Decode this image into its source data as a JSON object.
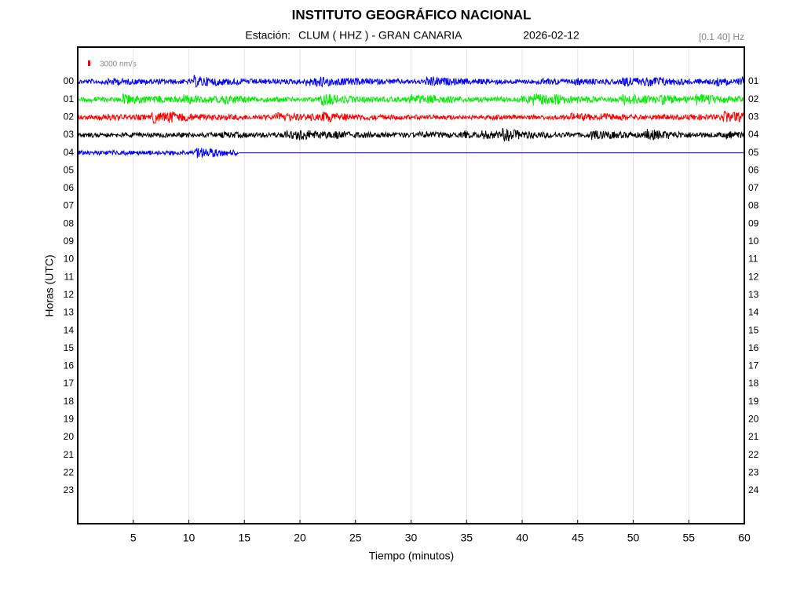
{
  "chart_data": {
    "type": "helicorder",
    "title": "INSTITUTO GEOGRÁFICO NACIONAL",
    "station_label": "Estación:",
    "station": "CLUM ( HHZ ) - GRAN CANARIA",
    "date": "2026-02-12",
    "band": "[0.1 40] Hz",
    "scale_label": "3000 nm/s",
    "scale_color": "#ff0000",
    "xlabel": "Tiempo (minutos)",
    "ylabel": "Horas (UTC)",
    "xlim": [
      0,
      60
    ],
    "xticks": [
      5,
      10,
      15,
      20,
      25,
      30,
      35,
      40,
      45,
      50,
      55,
      60
    ],
    "grid": true,
    "rows_left": [
      "00",
      "01",
      "02",
      "03",
      "04",
      "05",
      "06",
      "07",
      "08",
      "09",
      "10",
      "11",
      "12",
      "13",
      "14",
      "15",
      "16",
      "17",
      "18",
      "19",
      "20",
      "21",
      "22",
      "23"
    ],
    "rows_right": [
      "01",
      "02",
      "03",
      "04",
      "05",
      "06",
      "07",
      "08",
      "09",
      "10",
      "11",
      "12",
      "13",
      "14",
      "15",
      "16",
      "17",
      "18",
      "19",
      "20",
      "21",
      "22",
      "23",
      "24"
    ],
    "traces": [
      {
        "color": "#0000ff",
        "end": 60
      },
      {
        "color": "#00ee00",
        "end": 60
      },
      {
        "color": "#ff0000",
        "end": 60
      },
      {
        "color": "#000000",
        "end": 60
      },
      {
        "color": "#0000ff",
        "end": 14.5
      }
    ]
  }
}
